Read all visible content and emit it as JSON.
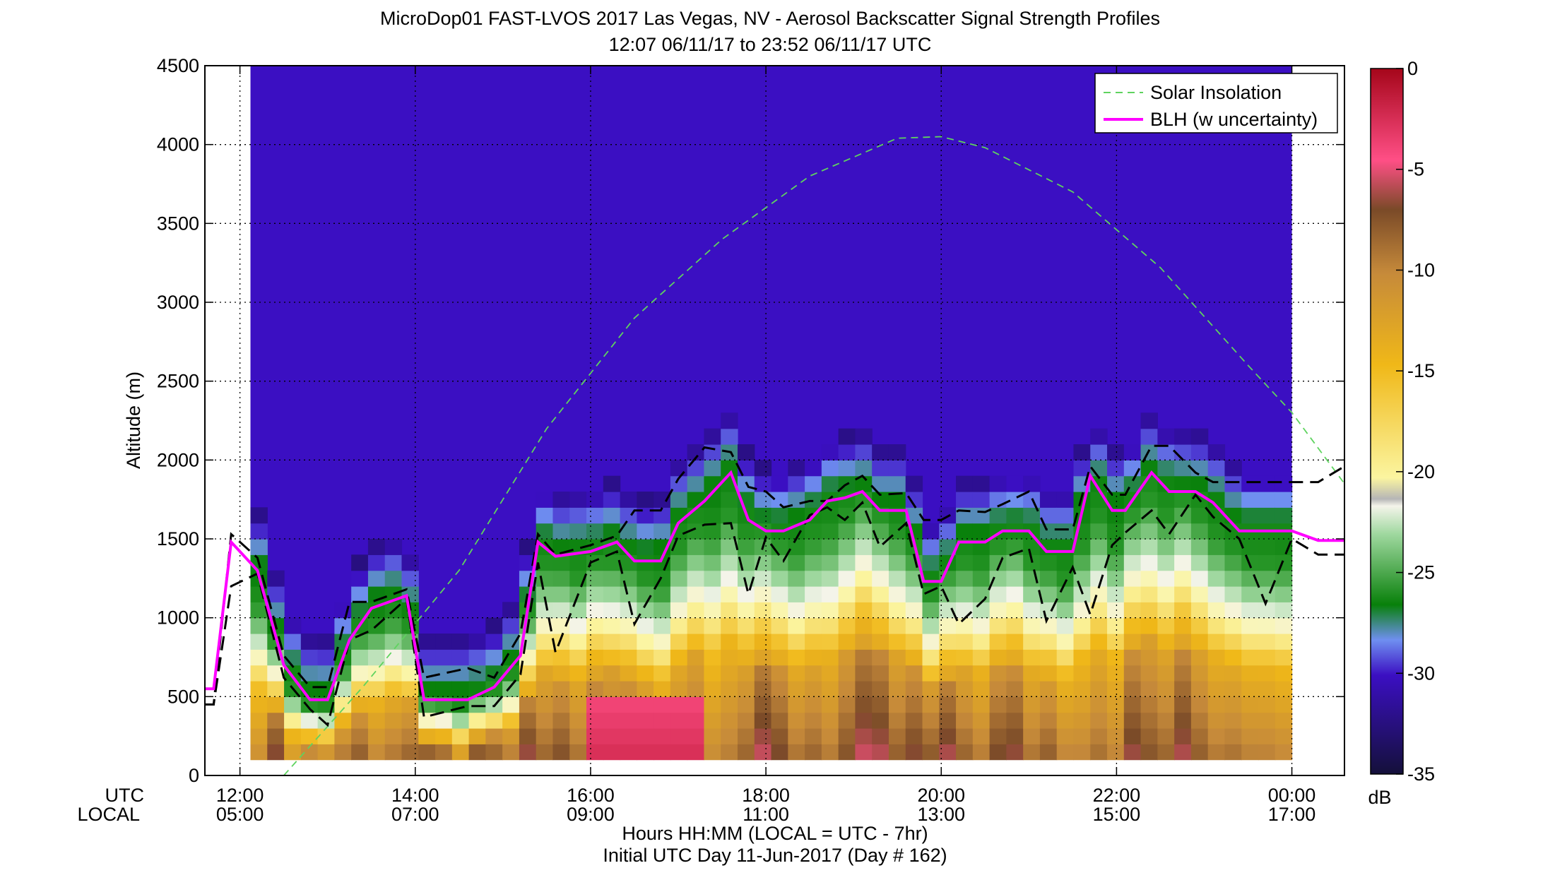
{
  "chart_data": {
    "type": "heatmap",
    "title": "MicroDop01 FAST-LVOS 2017 Las Vegas, NV - Aerosol Backscatter Signal Strength Profiles",
    "subtitle": "12:07 06/11/17 to 23:52 06/11/17  UTC",
    "xlabel": "Hours HH:MM  (LOCAL = UTC - 7hr)",
    "xlabel2": "Initial UTC Day 11-Jun-2017 (Day # 162)",
    "ylabel": "Altitude (m)",
    "x_row_label_utc": "UTC",
    "x_row_label_local": "LOCAL",
    "xlim_hours": [
      11.6,
      24.6
    ],
    "ylim": [
      0,
      4500
    ],
    "yticks": [
      0,
      500,
      1000,
      1500,
      2000,
      2500,
      3000,
      3500,
      4000,
      4500
    ],
    "xticks": [
      {
        "hour": 12,
        "utc": "12:00",
        "local": "05:00"
      },
      {
        "hour": 14,
        "utc": "14:00",
        "local": "07:00"
      },
      {
        "hour": 16,
        "utc": "16:00",
        "local": "09:00"
      },
      {
        "hour": 18,
        "utc": "18:00",
        "local": "11:00"
      },
      {
        "hour": 20,
        "utc": "20:00",
        "local": "13:00"
      },
      {
        "hour": 22,
        "utc": "22:00",
        "local": "15:00"
      },
      {
        "hour": 24,
        "utc": "00:00",
        "local": "17:00"
      }
    ],
    "grid": true,
    "legend": {
      "placement": "top-right",
      "entries": [
        {
          "label": "Solar Insolation",
          "color": "#5fd35f",
          "style": "dashed"
        },
        {
          "label": "BLH (w uncertainty)",
          "color": "#ff00ff",
          "style": "solid"
        }
      ]
    },
    "colorbar": {
      "label": "dB",
      "range": [
        -35,
        0
      ],
      "ticks": [
        "0",
        "-5",
        "-10",
        "-15",
        "-20",
        "-25",
        "-30",
        "-35"
      ]
    },
    "data_time_range_hours": [
      12.12,
      24.0
    ],
    "data_alt_range": [
      100,
      4500
    ],
    "colors": {
      "background_scatter": "#3b0fc2",
      "blh_line": "#ff00ff",
      "uncertainty_line": "#000000",
      "solar_line": "#5fd35f"
    },
    "blh_profile": {
      "hours": [
        11.6,
        11.7,
        11.9,
        12.2,
        12.5,
        12.8,
        13.0,
        13.25,
        13.5,
        13.9,
        14.1,
        14.6,
        14.9,
        15.2,
        15.4,
        15.6,
        16.0,
        16.3,
        16.5,
        16.8,
        17.0,
        17.3,
        17.6,
        17.8,
        18.0,
        18.2,
        18.5,
        18.7,
        18.9,
        19.1,
        19.3,
        19.6,
        19.8,
        20.0,
        20.2,
        20.5,
        20.7,
        21.0,
        21.2,
        21.5,
        21.7,
        21.95,
        22.1,
        22.4,
        22.6,
        22.9,
        23.1,
        23.4,
        23.7,
        24.0,
        24.3,
        24.6
      ],
      "values": [
        550,
        550,
        1480,
        1300,
        700,
        480,
        480,
        860,
        1060,
        1140,
        480,
        480,
        560,
        760,
        1480,
        1390,
        1420,
        1480,
        1360,
        1360,
        1600,
        1740,
        1920,
        1620,
        1550,
        1550,
        1620,
        1740,
        1760,
        1800,
        1680,
        1680,
        1230,
        1230,
        1480,
        1480,
        1550,
        1550,
        1420,
        1420,
        1900,
        1680,
        1680,
        1920,
        1800,
        1800,
        1730,
        1550,
        1550,
        1550,
        1490,
        1490
      ]
    },
    "blh_upper": {
      "hours": [
        11.6,
        11.7,
        11.9,
        12.2,
        12.5,
        12.8,
        13.0,
        13.25,
        13.5,
        13.9,
        14.1,
        14.6,
        14.9,
        15.2,
        15.4,
        15.6,
        16.0,
        16.3,
        16.5,
        16.8,
        17.0,
        17.3,
        17.6,
        17.8,
        18.0,
        18.2,
        18.5,
        18.7,
        18.9,
        19.1,
        19.3,
        19.6,
        19.8,
        20.0,
        20.2,
        20.5,
        20.7,
        21.0,
        21.2,
        21.5,
        21.7,
        21.95,
        22.1,
        22.4,
        22.6,
        22.9,
        23.1,
        23.4,
        23.7,
        24.0,
        24.3,
        24.6
      ],
      "values": [
        450,
        450,
        1530,
        1380,
        760,
        560,
        560,
        1100,
        1100,
        1180,
        620,
        680,
        620,
        900,
        1530,
        1400,
        1460,
        1520,
        1680,
        1680,
        1880,
        2080,
        2050,
        1830,
        1800,
        1700,
        1740,
        1740,
        1840,
        1900,
        1780,
        1790,
        1620,
        1620,
        1680,
        1670,
        1720,
        1800,
        1560,
        1560,
        1960,
        1780,
        1780,
        2090,
        2090,
        1920,
        1860,
        1860,
        1860,
        1860,
        1860,
        1960
      ]
    },
    "blh_lower": {
      "hours": [
        11.6,
        11.7,
        11.9,
        12.2,
        12.5,
        12.8,
        13.0,
        13.25,
        13.5,
        13.9,
        14.1,
        14.6,
        14.9,
        15.2,
        15.4,
        15.6,
        16.0,
        16.3,
        16.5,
        16.8,
        17.0,
        17.3,
        17.6,
        17.8,
        18.0,
        18.2,
        18.5,
        18.7,
        18.9,
        19.1,
        19.3,
        19.6,
        19.8,
        20.0,
        20.2,
        20.5,
        20.7,
        21.0,
        21.2,
        21.5,
        21.7,
        21.95,
        22.1,
        22.4,
        22.6,
        22.9,
        23.1,
        23.4,
        23.7,
        24.0,
        24.3,
        24.6
      ],
      "values": [
        450,
        450,
        1200,
        1280,
        620,
        420,
        320,
        860,
        920,
        1120,
        370,
        440,
        440,
        640,
        1350,
        780,
        1350,
        1420,
        960,
        1250,
        1520,
        1590,
        1600,
        1150,
        1510,
        1360,
        1650,
        1700,
        1620,
        1730,
        1450,
        1600,
        1150,
        1200,
        960,
        1120,
        1380,
        1440,
        980,
        1320,
        1020,
        1460,
        1540,
        1680,
        1530,
        1780,
        1640,
        1500,
        1090,
        1500,
        1400,
        1400
      ]
    },
    "solar_insolation": {
      "hours": [
        12.5,
        13.4,
        14.5,
        15.5,
        16.5,
        17.5,
        18.5,
        19.5,
        20.0,
        20.5,
        21.5,
        22.5,
        23.5,
        24.0,
        24.6
      ],
      "values": [
        0,
        560,
        1300,
        2200,
        2900,
        3400,
        3800,
        4040,
        4050,
        3980,
        3700,
        3220,
        2600,
        2300,
        1850
      ]
    }
  }
}
